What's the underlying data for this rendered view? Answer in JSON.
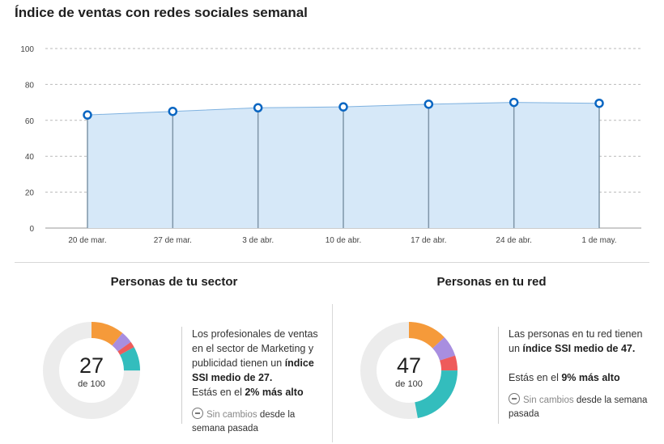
{
  "chart_data": {
    "type": "area",
    "title": "Índice de ventas con redes sociales semanal",
    "categories": [
      "20 de mar.",
      "27 de mar.",
      "3 de abr.",
      "10 de abr.",
      "17 de abr.",
      "24 de abr.",
      "1 de may."
    ],
    "values": [
      63,
      65,
      67,
      67.5,
      69,
      70,
      69.5
    ],
    "yticks": [
      "0",
      "20",
      "40",
      "60",
      "80",
      "100"
    ],
    "ylim": [
      0,
      100
    ],
    "grid": true,
    "colors": {
      "line": "#0a66c2",
      "fill": "#d6e8f8",
      "grid": "#b9b9b9",
      "stem": "#7f95a8"
    }
  },
  "sector": {
    "title": "Personas de tu sector",
    "score": "27",
    "score_sub": "de 100",
    "segments": [
      {
        "value": 11,
        "color": "#f59a3a"
      },
      {
        "value": 4,
        "color": "#a88ee0"
      },
      {
        "value": 2,
        "color": "#ee5b5b"
      },
      {
        "value": 8,
        "color": "#33bdbd"
      }
    ],
    "desc_pre": "Los profesionales de ventas en el sector de Marketing y publicidad tienen un ",
    "desc_bold": "índice SSI medio de 27.",
    "compare_pre": "Estás en el ",
    "compare_bold": "2% más alto",
    "nochange_label": "Sin cambios",
    "nochange_rest": " desde la semana pasada"
  },
  "network": {
    "title": "Personas en tu red",
    "score": "47",
    "score_sub": "de 100",
    "segments": [
      {
        "value": 13,
        "color": "#f59a3a"
      },
      {
        "value": 7,
        "color": "#a88ee0"
      },
      {
        "value": 5,
        "color": "#ee5b5b"
      },
      {
        "value": 22,
        "color": "#33bdbd"
      }
    ],
    "desc_pre": "Las personas en tu red tienen un ",
    "desc_bold": "índice SSI medio de 47.",
    "compare_pre": "Estás en el ",
    "compare_bold": "9% más alto",
    "nochange_label": "Sin cambios",
    "nochange_rest": " desde la semana pasada"
  },
  "donut_track_color": "#ececec"
}
